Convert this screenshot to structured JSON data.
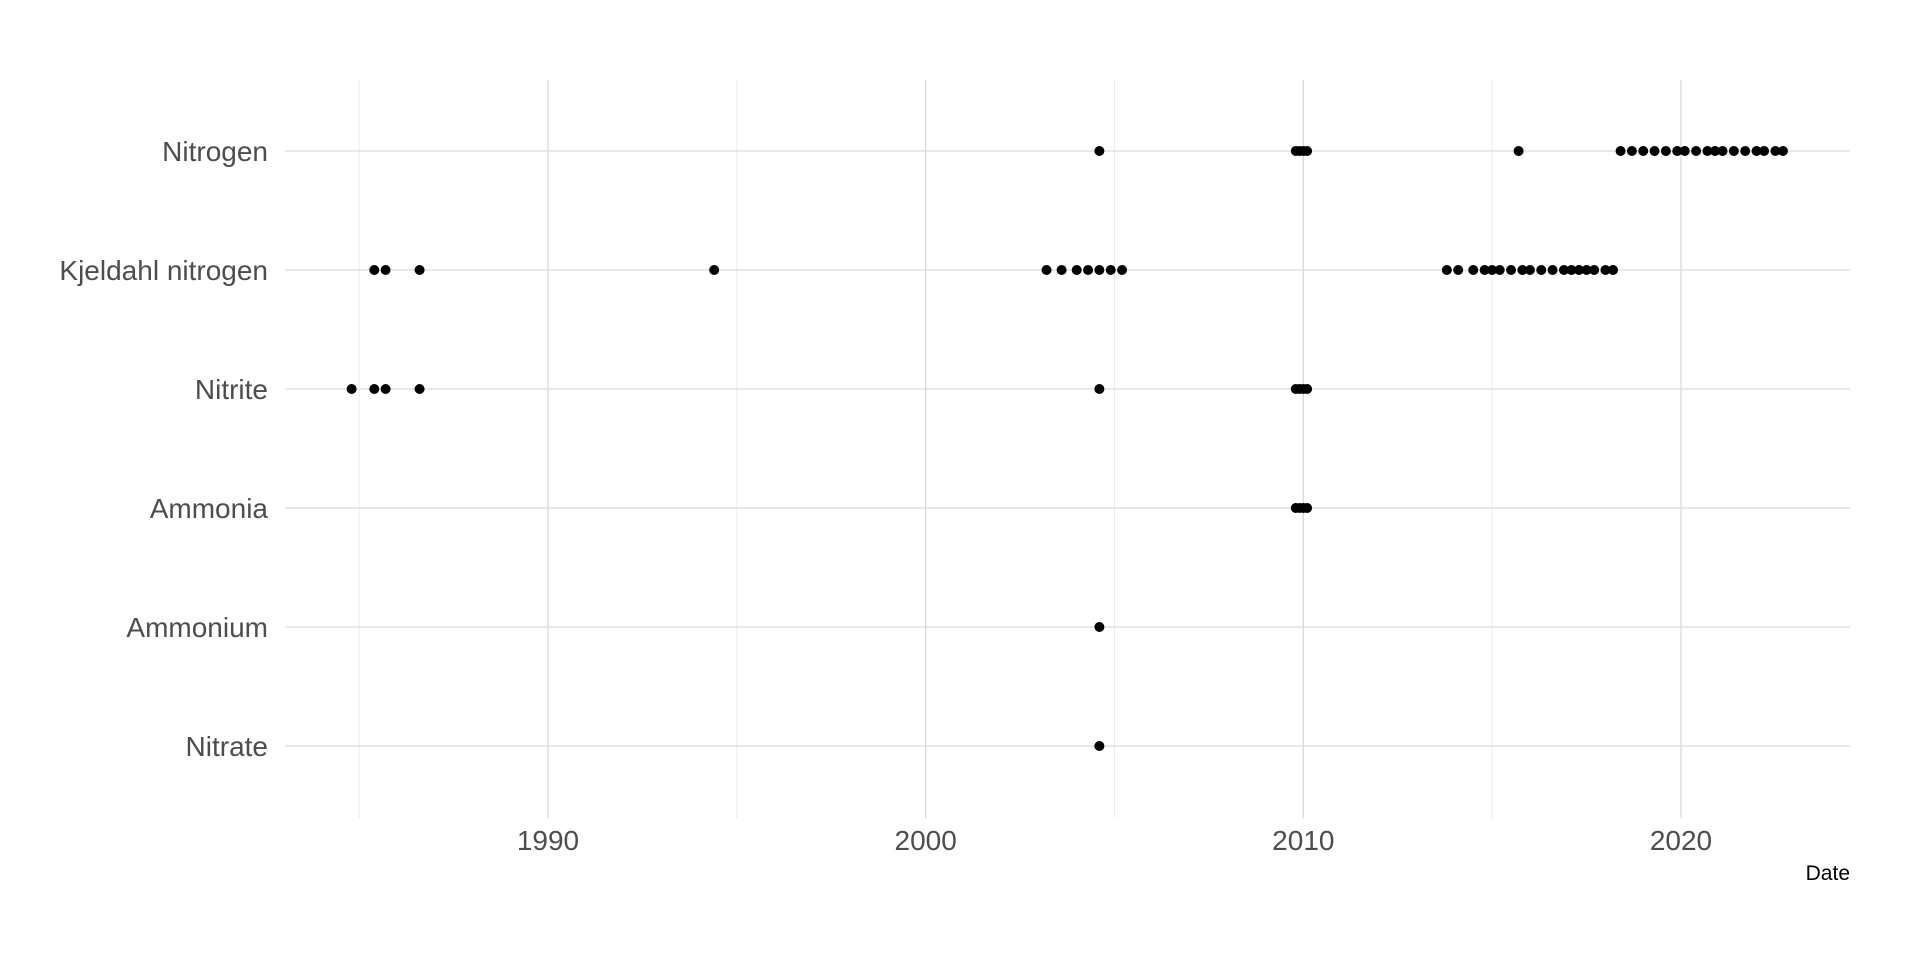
{
  "chart_data": {
    "type": "scatter",
    "title": "",
    "xlabel": "Date",
    "ylabel": "",
    "x_axis": {
      "kind": "date",
      "range": [
        1983.0,
        2024.5
      ],
      "major_ticks": [
        1990,
        2000,
        2010,
        2020
      ],
      "major_tick_labels": [
        "1990",
        "2000",
        "2010",
        "2020"
      ],
      "minor_ticks": [
        1985,
        1995,
        2005,
        2015
      ]
    },
    "categories": [
      "Nitrate",
      "Ammonium",
      "Ammonia",
      "Nitrite",
      "Kjeldahl nitrogen",
      "Nitrogen"
    ],
    "grid": true,
    "legend": "none",
    "point_color": "#000000",
    "series": [
      {
        "category": "Nitrogen",
        "x": [
          2004.6,
          2009.8,
          2009.9,
          2010.0,
          2010.1,
          2015.7,
          2018.4,
          2018.7,
          2019.0,
          2019.3,
          2019.6,
          2019.9,
          2020.1,
          2020.4,
          2020.7,
          2020.9,
          2021.1,
          2021.4,
          2021.7,
          2022.0,
          2022.2,
          2022.5,
          2022.7
        ]
      },
      {
        "category": "Kjeldahl nitrogen",
        "x": [
          1985.4,
          1985.7,
          1986.6,
          1994.4,
          2003.2,
          2003.6,
          2004.0,
          2004.3,
          2004.6,
          2004.9,
          2005.2,
          2013.8,
          2014.1,
          2014.5,
          2014.8,
          2015.0,
          2015.2,
          2015.5,
          2015.8,
          2016.0,
          2016.3,
          2016.6,
          2016.9,
          2017.1,
          2017.3,
          2017.5,
          2017.7,
          2018.0,
          2018.2
        ]
      },
      {
        "category": "Nitrite",
        "x": [
          1984.8,
          1985.4,
          1985.7,
          1986.6,
          2004.6,
          2009.8,
          2009.9,
          2010.0,
          2010.1
        ]
      },
      {
        "category": "Ammonia",
        "x": [
          2009.8,
          2009.9,
          2010.0,
          2010.1
        ]
      },
      {
        "category": "Ammonium",
        "x": [
          2004.6
        ]
      },
      {
        "category": "Nitrate",
        "x": [
          2004.6
        ]
      }
    ]
  }
}
